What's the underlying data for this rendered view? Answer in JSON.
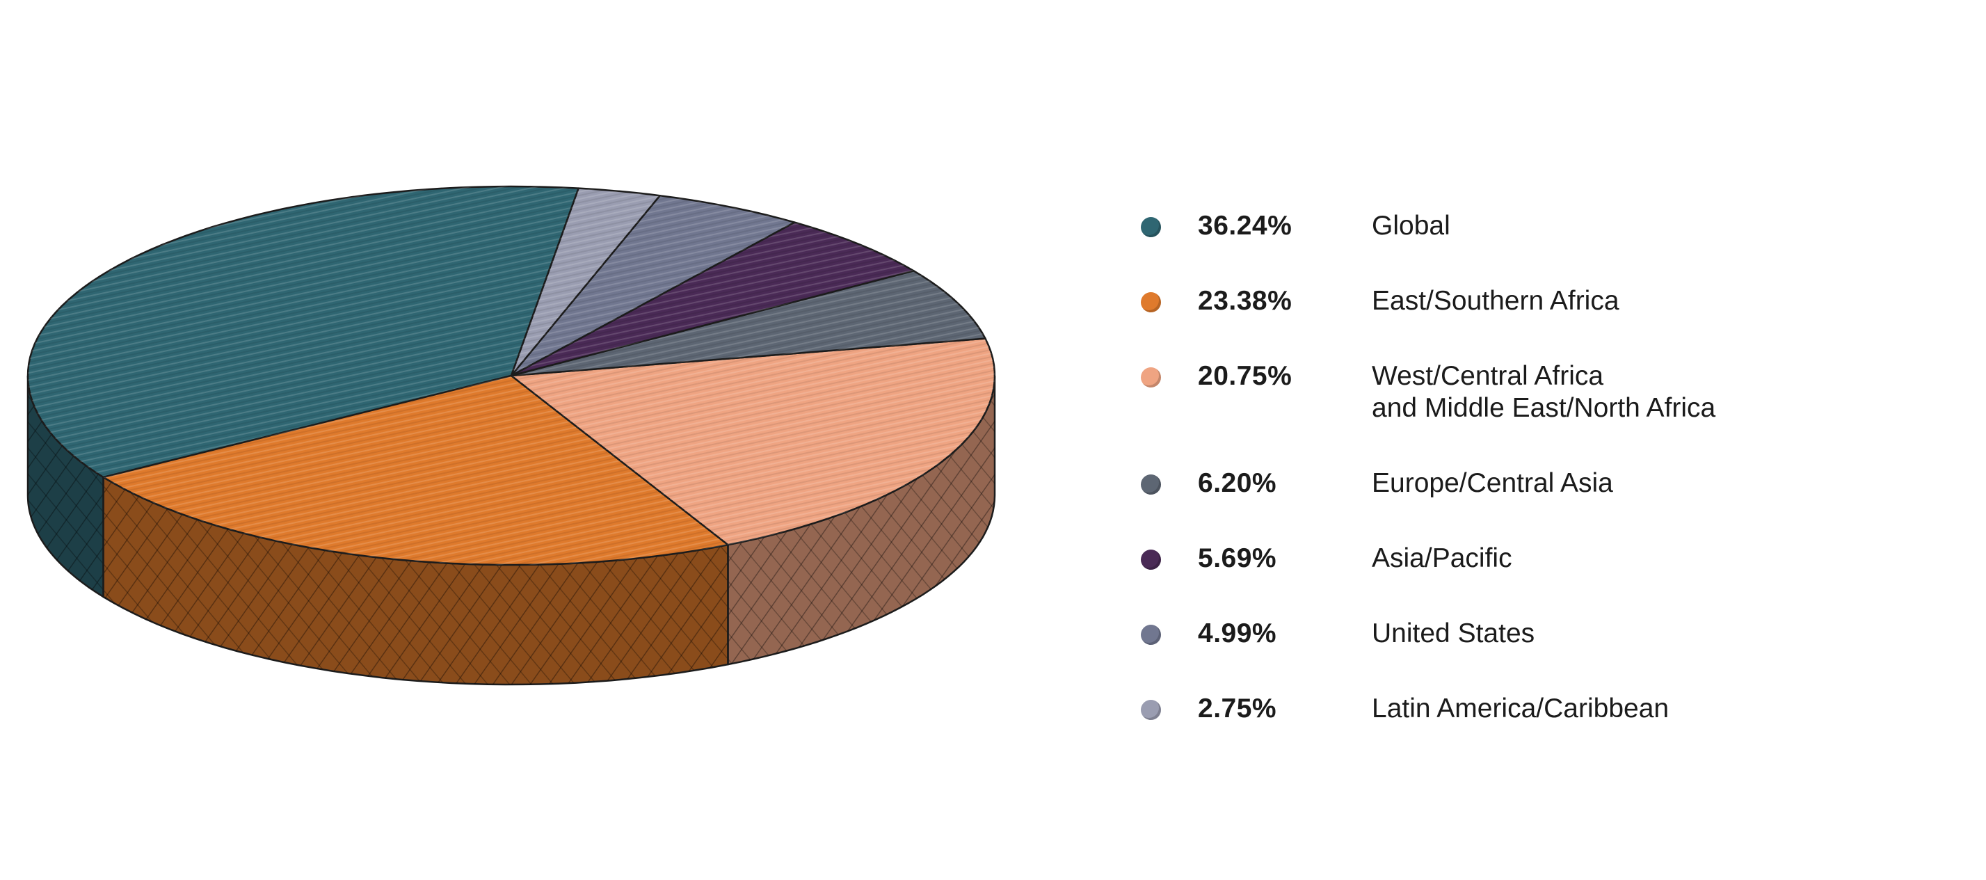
{
  "chart_data": {
    "type": "pie",
    "style": "3d-pie",
    "legend_position": "right",
    "slices": [
      {
        "label": "Global",
        "value": 36.24,
        "value_label": "36.24%",
        "color": "#2f6672"
      },
      {
        "label": "East/Southern Africa",
        "value": 23.38,
        "value_label": "23.38%",
        "color": "#df7a2c"
      },
      {
        "label": "West/Central Africa\nand Middle East/North Africa",
        "value": 20.75,
        "value_label": "20.75%",
        "color": "#efa482"
      },
      {
        "label": "Europe/Central Asia",
        "value": 6.2,
        "value_label": "6.20%",
        "color": "#5d6673"
      },
      {
        "label": "Asia/Pacific",
        "value": 5.69,
        "value_label": "5.69%",
        "color": "#4a2a56"
      },
      {
        "label": "United States",
        "value": 4.99,
        "value_label": "4.99%",
        "color": "#717790"
      },
      {
        "label": "Latin America/Caribbean",
        "value": 2.75,
        "value_label": "2.75%",
        "color": "#9a9db1"
      }
    ]
  }
}
